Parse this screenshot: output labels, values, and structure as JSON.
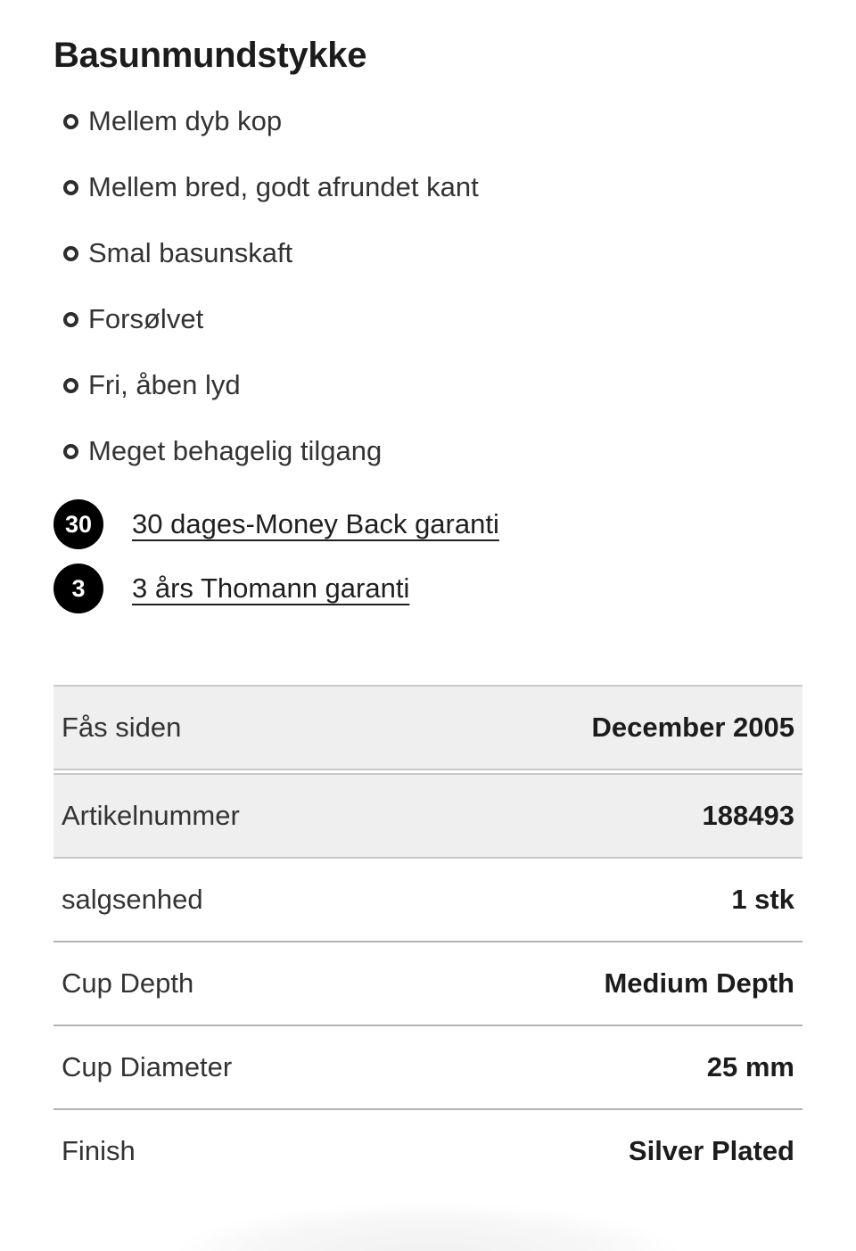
{
  "product": {
    "title": "Basunmundstykke",
    "features": [
      "Mellem dyb kop",
      "Mellem bred, godt afrundet kant",
      "Smal basunskaft",
      "Forsølvet",
      "Fri, åben lyd",
      "Meget behagelig tilgang"
    ],
    "guarantees": [
      {
        "badge": "30",
        "label": "30 dages-Money Back garanti"
      },
      {
        "badge": "3",
        "label": "3 års Thomann garanti"
      }
    ],
    "specs": {
      "rows": [
        {
          "label": "Fås siden",
          "value": "December 2005"
        },
        {
          "label": "Artikelnummer",
          "value": "188493"
        },
        {
          "label": "salgsenhed",
          "value": "1 stk"
        },
        {
          "label": "Cup Depth",
          "value": "Medium Depth"
        },
        {
          "label": "Cup Diameter",
          "value": "25 mm"
        },
        {
          "label": "Finish",
          "value": "Silver Plated"
        }
      ]
    },
    "colors": {
      "badge_bg": "#000000",
      "badge_text": "#ffffff",
      "highlight_row_bg": "#efefef",
      "highlight_row_border": "#c9c9c9",
      "divider": "#b2b2b2",
      "title_text": "#1c1c1c",
      "body_text": "#333333"
    }
  }
}
